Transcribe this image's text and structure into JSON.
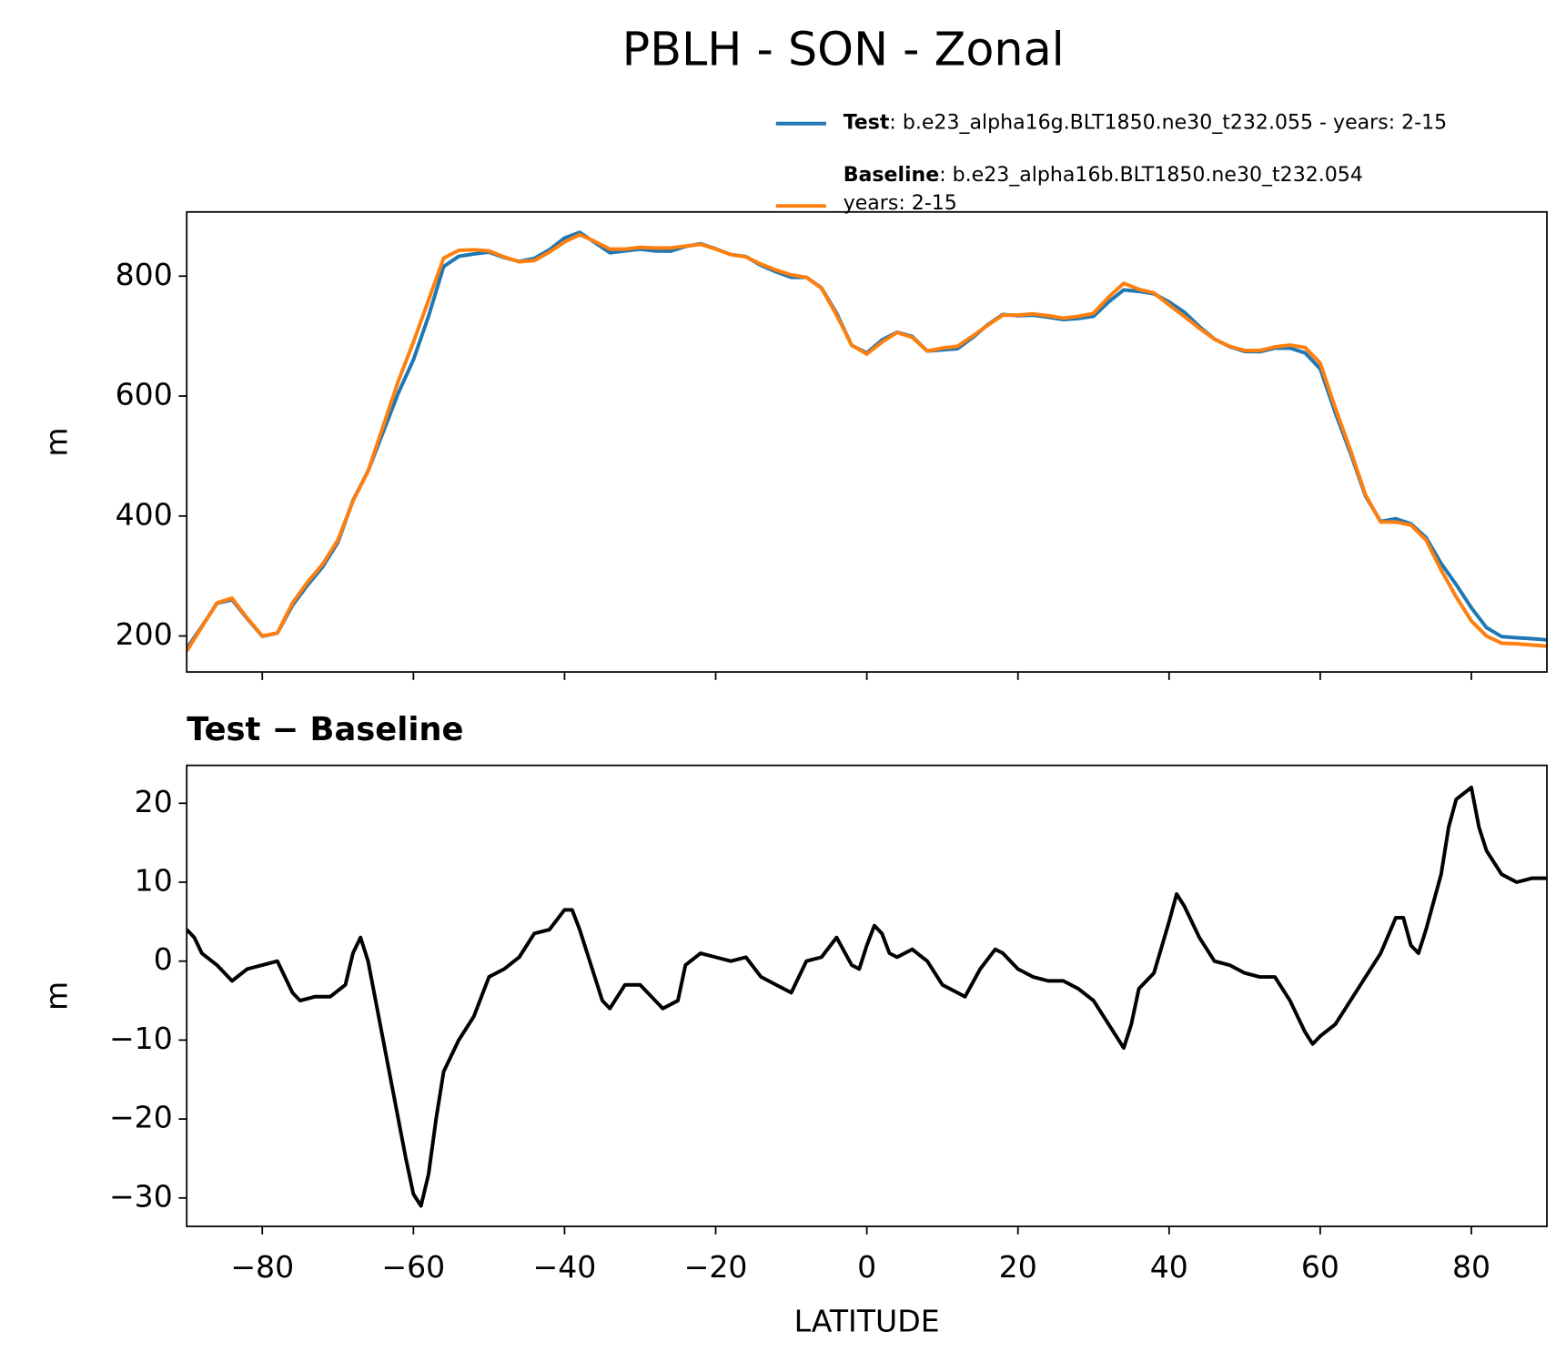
{
  "title": "PBLH - SON - Zonal",
  "chart_data": [
    {
      "type": "line",
      "ylabel": "m",
      "legend": "upper right",
      "sharex": true,
      "xlim": [
        -90,
        90
      ],
      "ylim": [
        140,
        907
      ],
      "yticks": [
        200,
        400,
        600,
        800
      ],
      "x": [
        -90,
        -88,
        -86,
        -84,
        -82,
        -80,
        -78,
        -76,
        -74,
        -72,
        -70,
        -68,
        -66,
        -64,
        -62,
        -60,
        -58,
        -56,
        -54,
        -52,
        -50,
        -48,
        -46,
        -44,
        -42,
        -40,
        -38,
        -36,
        -34,
        -32,
        -30,
        -28,
        -26,
        -24,
        -22,
        -20,
        -18,
        -16,
        -14,
        -12,
        -10,
        -8,
        -6,
        -4,
        -2,
        0,
        2,
        4,
        6,
        8,
        10,
        12,
        14,
        16,
        18,
        20,
        22,
        24,
        26,
        28,
        30,
        32,
        34,
        36,
        38,
        40,
        42,
        44,
        46,
        48,
        50,
        52,
        54,
        56,
        58,
        60,
        62,
        64,
        66,
        68,
        70,
        72,
        74,
        76,
        78,
        80,
        82,
        84,
        86,
        88,
        90
      ],
      "series": [
        {
          "name": "Test",
          "description": [
            ": b.e23_alpha16g.BLT1850.ne30_t232.055 - years: 2-15"
          ],
          "color": "#1f77b4",
          "values": [
            179,
            216,
            254.5,
            260.5,
            229,
            199.5,
            205,
            251,
            285,
            315.5,
            356,
            426,
            475,
            540,
            605,
            660.5,
            733,
            816,
            833,
            837,
            840,
            831,
            824.5,
            829.5,
            844,
            863.5,
            873,
            856,
            839,
            842,
            845,
            842,
            841.5,
            849.5,
            854,
            845.5,
            836,
            832.5,
            818,
            807,
            798,
            798,
            780.5,
            738,
            684.5,
            672,
            693.5,
            706.5,
            699.5,
            675,
            677,
            679,
            697.5,
            719,
            736,
            734,
            735,
            731.5,
            727.5,
            729.5,
            733,
            757,
            777,
            774.5,
            770.5,
            757,
            740,
            716,
            695,
            682.5,
            674.5,
            674,
            680,
            680,
            672,
            645.5,
            572,
            505,
            433,
            391,
            395.5,
            387,
            364,
            321,
            285.5,
            247,
            214,
            199,
            197,
            195.5,
            193.5
          ]
        },
        {
          "name": "Baseline",
          "description": [
            ": b.e23_alpha16b.BLT1850.ne30_t232.054",
            "years: 2-15"
          ],
          "color": "#ff7f0e",
          "values": [
            175,
            215,
            255,
            263,
            230,
            200,
            205,
            255,
            290,
            320,
            360,
            425,
            475,
            550,
            625,
            690,
            760,
            830,
            843,
            844,
            842,
            832,
            824,
            826,
            840,
            857,
            869,
            858,
            845,
            845,
            848,
            847,
            847,
            850,
            853,
            845,
            836,
            832,
            820,
            810,
            802,
            798,
            780,
            735,
            685,
            670,
            690,
            706,
            698,
            675,
            680,
            683,
            700,
            718,
            735,
            735,
            737,
            734,
            730,
            733,
            738,
            765,
            788,
            778,
            772,
            752,
            733,
            713,
            695,
            683,
            676,
            676,
            682,
            685,
            681,
            655,
            580,
            510,
            435,
            390,
            390,
            385,
            360,
            310,
            265,
            225,
            200,
            188,
            187,
            185,
            183
          ]
        }
      ]
    },
    {
      "type": "line",
      "title": "Test − Baseline",
      "xlabel": "LATITUDE",
      "ylabel": "m",
      "color": "#000000",
      "xlim": [
        -90,
        90
      ],
      "ylim": [
        -33.6,
        24.8
      ],
      "xticks": [
        {
          "value": -80,
          "label": "−80"
        },
        {
          "value": -60,
          "label": "−60"
        },
        {
          "value": -40,
          "label": "−40"
        },
        {
          "value": -20,
          "label": "−20"
        },
        0,
        20,
        40,
        60,
        80
      ],
      "yticks": [
        {
          "value": -30,
          "label": "−30"
        },
        {
          "value": -20,
          "label": "−20"
        },
        {
          "value": -10,
          "label": "−10"
        },
        0,
        10,
        20
      ],
      "x": [
        -90,
        -89,
        -88,
        -86,
        -84,
        -82,
        -80,
        -78,
        -76,
        -75,
        -73,
        -71,
        -69,
        -68,
        -67,
        -66,
        -64,
        -62,
        -61,
        -60,
        -59,
        -58,
        -57,
        -56,
        -54,
        -52,
        -50,
        -48,
        -46,
        -44,
        -42,
        -40,
        -39,
        -38,
        -36,
        -35,
        -34,
        -32,
        -30,
        -28,
        -27,
        -25,
        -24,
        -22,
        -20,
        -18,
        -16,
        -14,
        -12,
        -10,
        -8,
        -6,
        -4,
        -2,
        -1,
        0,
        1,
        2,
        3,
        4,
        6,
        8,
        10,
        12,
        13,
        15,
        17,
        18,
        20,
        22,
        24,
        26,
        28,
        30,
        32,
        34,
        35,
        36,
        38,
        40,
        41,
        42,
        44,
        46,
        48,
        50,
        52,
        54,
        56,
        58,
        59,
        60,
        62,
        64,
        66,
        68,
        70,
        71,
        72,
        73,
        74,
        76,
        77,
        78,
        80,
        81,
        82,
        84,
        86,
        88,
        90
      ],
      "values": [
        4,
        3,
        1,
        -0.5,
        -2.5,
        -1,
        -0.5,
        0,
        -4,
        -5,
        -4.5,
        -4.5,
        -3,
        1,
        3,
        0,
        -10,
        -20,
        -25,
        -29.5,
        -31,
        -27,
        -20,
        -14,
        -10,
        -7,
        -2,
        -1,
        0.5,
        3.5,
        4,
        6.5,
        6.5,
        4,
        -2,
        -5,
        -6,
        -3,
        -3,
        -5,
        -6,
        -5,
        -0.5,
        1,
        0.5,
        0,
        0.5,
        -2,
        -3,
        -4,
        0,
        0.5,
        3,
        -0.5,
        -1,
        2,
        4.5,
        3.5,
        1,
        0.5,
        1.5,
        0,
        -3,
        -4,
        -4.5,
        -1,
        1.5,
        1,
        -1,
        -2,
        -2.5,
        -2.5,
        -3.5,
        -5,
        -8,
        -11,
        -8,
        -3.5,
        -1.5,
        5,
        8.5,
        7,
        3,
        0,
        -0.5,
        -1.5,
        -2,
        -2,
        -5,
        -9,
        -10.5,
        -9.5,
        -8,
        -5,
        -2,
        1,
        5.5,
        5.5,
        2,
        1,
        4,
        11,
        17,
        20.5,
        22,
        17,
        14,
        11,
        10,
        10.5,
        10.5
      ]
    }
  ]
}
